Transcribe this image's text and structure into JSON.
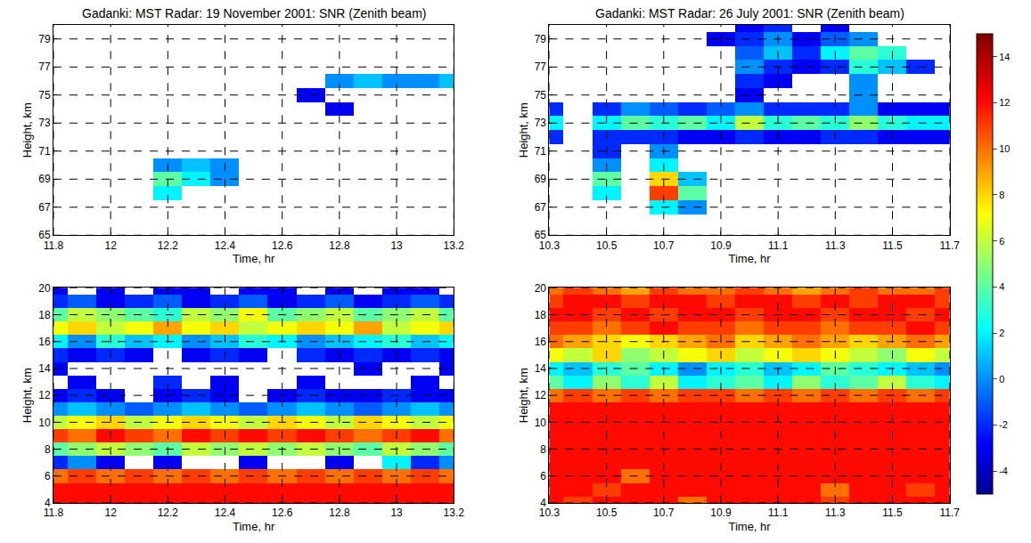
{
  "chart_data": [
    {
      "type": "heatmap",
      "title": "Gadanki: MST Radar: 19 November 2001: SNR (Zenith beam)",
      "x_label": "Time, hr",
      "y_label": "Height, km",
      "xlim": [
        11.8,
        13.2
      ],
      "xticks": [
        11.8,
        12,
        12.2,
        12.4,
        12.6,
        12.8,
        13,
        13.2
      ],
      "ylim": [
        65,
        80
      ],
      "yticks": [
        65,
        67,
        69,
        71,
        73,
        75,
        77,
        79
      ],
      "grid": true,
      "x": [
        11.8,
        11.9,
        12.0,
        12.1,
        12.2,
        12.3,
        12.4,
        12.5,
        12.6,
        12.7,
        12.8,
        12.9,
        13.0,
        13.1,
        13.2
      ],
      "y": [
        65,
        66,
        67,
        68,
        69,
        70,
        71,
        72,
        73,
        74,
        75,
        76,
        77,
        78,
        79,
        80
      ],
      "z": [
        [
          null,
          null,
          null,
          null,
          null,
          null,
          null,
          null,
          null,
          null,
          null,
          null,
          null,
          null,
          null
        ],
        [
          null,
          null,
          null,
          null,
          null,
          null,
          null,
          null,
          null,
          null,
          null,
          null,
          null,
          null,
          null
        ],
        [
          null,
          null,
          null,
          null,
          null,
          null,
          null,
          null,
          null,
          null,
          null,
          null,
          null,
          null,
          null
        ],
        [
          null,
          null,
          null,
          null,
          2,
          null,
          null,
          null,
          null,
          null,
          null,
          null,
          null,
          null,
          null
        ],
        [
          null,
          null,
          null,
          null,
          4,
          2,
          0,
          null,
          null,
          null,
          null,
          null,
          null,
          null,
          null
        ],
        [
          null,
          null,
          null,
          null,
          0,
          1,
          0,
          null,
          null,
          null,
          null,
          null,
          null,
          null,
          null
        ],
        [
          null,
          null,
          null,
          null,
          null,
          null,
          null,
          null,
          null,
          null,
          null,
          null,
          null,
          null,
          null
        ],
        [
          null,
          null,
          null,
          null,
          null,
          null,
          null,
          null,
          null,
          null,
          null,
          null,
          null,
          null,
          null
        ],
        [
          null,
          null,
          null,
          null,
          null,
          null,
          null,
          null,
          null,
          null,
          null,
          null,
          null,
          null,
          null
        ],
        [
          null,
          null,
          null,
          null,
          null,
          null,
          null,
          null,
          null,
          null,
          -3,
          null,
          null,
          null,
          null
        ],
        [
          null,
          null,
          null,
          null,
          null,
          null,
          null,
          null,
          null,
          -3,
          null,
          null,
          null,
          null,
          null
        ],
        [
          null,
          null,
          null,
          null,
          null,
          null,
          null,
          null,
          null,
          null,
          0,
          1,
          0,
          0,
          1
        ],
        [
          null,
          null,
          null,
          null,
          null,
          null,
          null,
          null,
          null,
          null,
          null,
          null,
          null,
          null,
          null
        ],
        [
          null,
          null,
          null,
          null,
          null,
          null,
          null,
          null,
          null,
          null,
          null,
          null,
          null,
          null,
          null
        ],
        [
          null,
          null,
          null,
          null,
          null,
          null,
          null,
          null,
          null,
          null,
          null,
          null,
          null,
          null,
          null
        ],
        [
          null,
          null,
          null,
          null,
          null,
          null,
          null,
          null,
          null,
          null,
          null,
          null,
          null,
          null,
          null
        ]
      ]
    },
    {
      "type": "heatmap",
      "title": "Gadanki: MST Radar: 26 July 2001: SNR (Zenith beam)",
      "x_label": "Time, hr",
      "y_label": "Height, km",
      "xlim": [
        10.3,
        11.7
      ],
      "xticks": [
        10.3,
        10.5,
        10.7,
        10.9,
        11.1,
        11.3,
        11.5,
        11.7
      ],
      "ylim": [
        65,
        80
      ],
      "yticks": [
        65,
        67,
        69,
        71,
        73,
        75,
        77,
        79
      ],
      "grid": true,
      "x": [
        10.3,
        10.4,
        10.5,
        10.6,
        10.7,
        10.8,
        10.9,
        11.0,
        11.1,
        11.2,
        11.3,
        11.4,
        11.5,
        11.6,
        11.7
      ],
      "y": [
        65,
        66,
        67,
        68,
        69,
        70,
        71,
        72,
        73,
        74,
        75,
        76,
        77,
        78,
        79,
        80
      ],
      "z": [
        [
          null,
          null,
          null,
          null,
          null,
          null,
          null,
          null,
          null,
          null,
          null,
          null,
          null,
          null,
          null
        ],
        [
          null,
          null,
          null,
          null,
          null,
          null,
          null,
          null,
          null,
          null,
          null,
          null,
          null,
          null,
          null
        ],
        [
          null,
          null,
          null,
          null,
          2,
          0,
          null,
          null,
          null,
          null,
          null,
          null,
          null,
          null,
          null
        ],
        [
          null,
          null,
          2,
          null,
          11,
          4,
          null,
          null,
          null,
          null,
          null,
          null,
          null,
          null,
          null
        ],
        [
          null,
          null,
          4,
          null,
          8,
          1,
          null,
          null,
          null,
          null,
          null,
          null,
          null,
          null,
          null
        ],
        [
          null,
          null,
          0,
          null,
          2,
          null,
          null,
          null,
          null,
          null,
          null,
          null,
          null,
          null,
          null
        ],
        [
          null,
          null,
          -2,
          null,
          0,
          null,
          null,
          null,
          null,
          null,
          null,
          null,
          null,
          null,
          null
        ],
        [
          -2,
          null,
          -2,
          -2,
          -2,
          -3,
          -3,
          -2,
          -3,
          -3,
          -2,
          -2,
          -3,
          -3,
          -3
        ],
        [
          2,
          null,
          2,
          4,
          3,
          4,
          2,
          6,
          3,
          4,
          3,
          5,
          3,
          2,
          2
        ],
        [
          -2,
          null,
          -2,
          0,
          -1,
          -2,
          -1,
          0,
          -2,
          -2,
          -2,
          0,
          -3,
          -3,
          -3
        ],
        [
          null,
          null,
          null,
          null,
          null,
          null,
          null,
          -3,
          null,
          null,
          null,
          0,
          null,
          null,
          null
        ],
        [
          null,
          null,
          null,
          null,
          null,
          null,
          null,
          -2,
          -3,
          null,
          null,
          0,
          null,
          null,
          null
        ],
        [
          null,
          null,
          null,
          null,
          null,
          null,
          null,
          0,
          -2,
          -3,
          -2,
          3,
          1,
          -2,
          null
        ],
        [
          null,
          null,
          null,
          null,
          null,
          null,
          null,
          -1,
          1,
          -2,
          2,
          4,
          3,
          null,
          null
        ],
        [
          null,
          null,
          null,
          null,
          null,
          null,
          -3,
          -2,
          0,
          -3,
          -1,
          0,
          null,
          null,
          null
        ],
        [
          null,
          null,
          null,
          null,
          null,
          null,
          null,
          -3,
          -2,
          null,
          -3,
          null,
          null,
          null,
          null
        ]
      ]
    },
    {
      "type": "heatmap",
      "x_label": "Time, hr",
      "y_label": "Height, km",
      "xlim": [
        11.8,
        13.2
      ],
      "xticks": [
        11.8,
        12,
        12.2,
        12.4,
        12.6,
        12.8,
        13,
        13.2
      ],
      "ylim": [
        4,
        20
      ],
      "yticks": [
        4,
        6,
        8,
        10,
        12,
        14,
        16,
        18,
        20
      ],
      "grid": true,
      "x": [
        11.8,
        11.9,
        12.0,
        12.1,
        12.2,
        12.3,
        12.4,
        12.5,
        12.6,
        12.7,
        12.8,
        12.9,
        13.0,
        13.1,
        13.2
      ],
      "y": [
        4,
        5,
        6,
        7,
        8,
        9,
        10,
        11,
        12,
        13,
        14,
        15,
        16,
        17,
        18,
        19,
        20
      ],
      "z": [
        [
          12,
          12,
          12,
          12,
          12,
          12,
          12,
          12,
          12,
          12,
          12,
          12,
          12,
          12,
          12
        ],
        [
          12,
          12,
          12,
          12,
          12,
          12,
          12,
          12,
          12,
          12,
          12,
          12,
          12,
          12,
          12
        ],
        [
          10,
          11,
          10,
          11,
          10,
          11,
          10,
          11,
          10,
          11,
          10,
          11,
          10,
          11,
          10
        ],
        [
          -2,
          0,
          -3,
          null,
          -3,
          null,
          null,
          -3,
          null,
          null,
          -3,
          null,
          2,
          -2,
          0
        ],
        [
          4,
          5,
          6,
          5,
          4,
          6,
          5,
          6,
          5,
          6,
          5,
          4,
          6,
          5,
          4
        ],
        [
          11,
          10,
          12,
          11,
          10,
          12,
          11,
          12,
          11,
          12,
          11,
          10,
          11,
          12,
          10
        ],
        [
          6,
          7,
          8,
          6,
          7,
          8,
          7,
          6,
          8,
          7,
          6,
          8,
          7,
          6,
          7
        ],
        [
          0,
          1,
          0,
          -1,
          0,
          1,
          0,
          -1,
          0,
          1,
          0,
          -1,
          0,
          1,
          0
        ],
        [
          -3,
          -2,
          -3,
          null,
          -3,
          -2,
          -3,
          null,
          -3,
          -2,
          -3,
          -3,
          -2,
          -3,
          -3
        ],
        [
          null,
          -3,
          null,
          null,
          -2,
          null,
          -3,
          null,
          null,
          -3,
          null,
          null,
          null,
          -3,
          null
        ],
        [
          -3,
          null,
          null,
          null,
          null,
          null,
          null,
          null,
          null,
          null,
          null,
          -3,
          null,
          null,
          -3
        ],
        [
          -2,
          -3,
          -2,
          -3,
          null,
          -3,
          -2,
          -3,
          null,
          -2,
          -3,
          -2,
          -3,
          -2,
          -3
        ],
        [
          2,
          0,
          3,
          1,
          2,
          0,
          1,
          3,
          2,
          0,
          1,
          2,
          3,
          1,
          2
        ],
        [
          7,
          8,
          6,
          7,
          9,
          7,
          8,
          6,
          7,
          8,
          7,
          9,
          6,
          7,
          8
        ],
        [
          4,
          6,
          5,
          4,
          3,
          6,
          5,
          7,
          4,
          5,
          6,
          4,
          5,
          6,
          4
        ],
        [
          -2,
          -1,
          -3,
          -2,
          -1,
          -3,
          -2,
          -1,
          -3,
          -2,
          -1,
          -3,
          -2,
          -1,
          -2
        ],
        [
          -3,
          null,
          -3,
          null,
          -3,
          -3,
          null,
          -3,
          -3,
          null,
          -3,
          null,
          -3,
          -3,
          null
        ]
      ]
    },
    {
      "type": "heatmap",
      "x_label": "Time, hr",
      "y_label": "Height, km",
      "xlim": [
        10.3,
        11.7
      ],
      "xticks": [
        10.3,
        10.5,
        10.7,
        10.9,
        11.1,
        11.3,
        11.5,
        11.7
      ],
      "ylim": [
        4,
        20
      ],
      "yticks": [
        4,
        6,
        8,
        10,
        12,
        14,
        16,
        18,
        20
      ],
      "grid": true,
      "x": [
        10.3,
        10.4,
        10.5,
        10.6,
        10.7,
        10.8,
        10.9,
        11.0,
        11.1,
        11.2,
        11.3,
        11.4,
        11.5,
        11.6,
        11.7
      ],
      "y": [
        4,
        5,
        6,
        7,
        8,
        9,
        10,
        11,
        12,
        13,
        14,
        15,
        16,
        17,
        18,
        19,
        20
      ],
      "z": [
        [
          12,
          11,
          12,
          12,
          12,
          10,
          12,
          12,
          12,
          12,
          11,
          12,
          12,
          12,
          12
        ],
        [
          12,
          12,
          11,
          12,
          12,
          12,
          12,
          12,
          12,
          12,
          10,
          12,
          12,
          11,
          12
        ],
        [
          12,
          12,
          12,
          10,
          12,
          12,
          12,
          12,
          12,
          12,
          12,
          12,
          12,
          12,
          12
        ],
        [
          12,
          12,
          12,
          12,
          12,
          12,
          12,
          12,
          12,
          12,
          12,
          12,
          12,
          12,
          12
        ],
        [
          12,
          12,
          12,
          12,
          12,
          12,
          12,
          12,
          12,
          12,
          12,
          12,
          12,
          12,
          12
        ],
        [
          12,
          12,
          12,
          12,
          12,
          12,
          12,
          12,
          12,
          12,
          12,
          12,
          12,
          12,
          12
        ],
        [
          12,
          12,
          12,
          12,
          12,
          12,
          12,
          12,
          12,
          12,
          12,
          12,
          12,
          12,
          12
        ],
        [
          12,
          12,
          12,
          12,
          12,
          12,
          12,
          12,
          12,
          12,
          12,
          12,
          12,
          12,
          12
        ],
        [
          10,
          11,
          10,
          11,
          10,
          11,
          11,
          10,
          11,
          10,
          11,
          10,
          11,
          10,
          11
        ],
        [
          4,
          2,
          5,
          3,
          6,
          2,
          3,
          4,
          2,
          5,
          3,
          4,
          6,
          3,
          2
        ],
        [
          2,
          1,
          3,
          4,
          2,
          0,
          2,
          3,
          1,
          2,
          4,
          3,
          2,
          1,
          0
        ],
        [
          7,
          6,
          8,
          5,
          6,
          7,
          8,
          6,
          7,
          8,
          7,
          6,
          5,
          7,
          6
        ],
        [
          10,
          9,
          8,
          7,
          8,
          9,
          10,
          8,
          9,
          10,
          9,
          8,
          9,
          10,
          9
        ],
        [
          11,
          11,
          10,
          11,
          12,
          11,
          11,
          10,
          11,
          11,
          10,
          11,
          11,
          12,
          11
        ],
        [
          12,
          12,
          11,
          12,
          11,
          12,
          12,
          11,
          12,
          12,
          11,
          12,
          12,
          11,
          12
        ],
        [
          11,
          12,
          12,
          11,
          12,
          12,
          11,
          12,
          12,
          11,
          12,
          11,
          12,
          12,
          11
        ],
        [
          10,
          11,
          10,
          9,
          11,
          10,
          10,
          11,
          10,
          9,
          10,
          11,
          10,
          10,
          11
        ]
      ]
    }
  ],
  "colorbar": {
    "range": [
      -5,
      15
    ],
    "ticks": [
      -4,
      -2,
      0,
      2,
      4,
      6,
      8,
      10,
      12,
      14
    ]
  }
}
